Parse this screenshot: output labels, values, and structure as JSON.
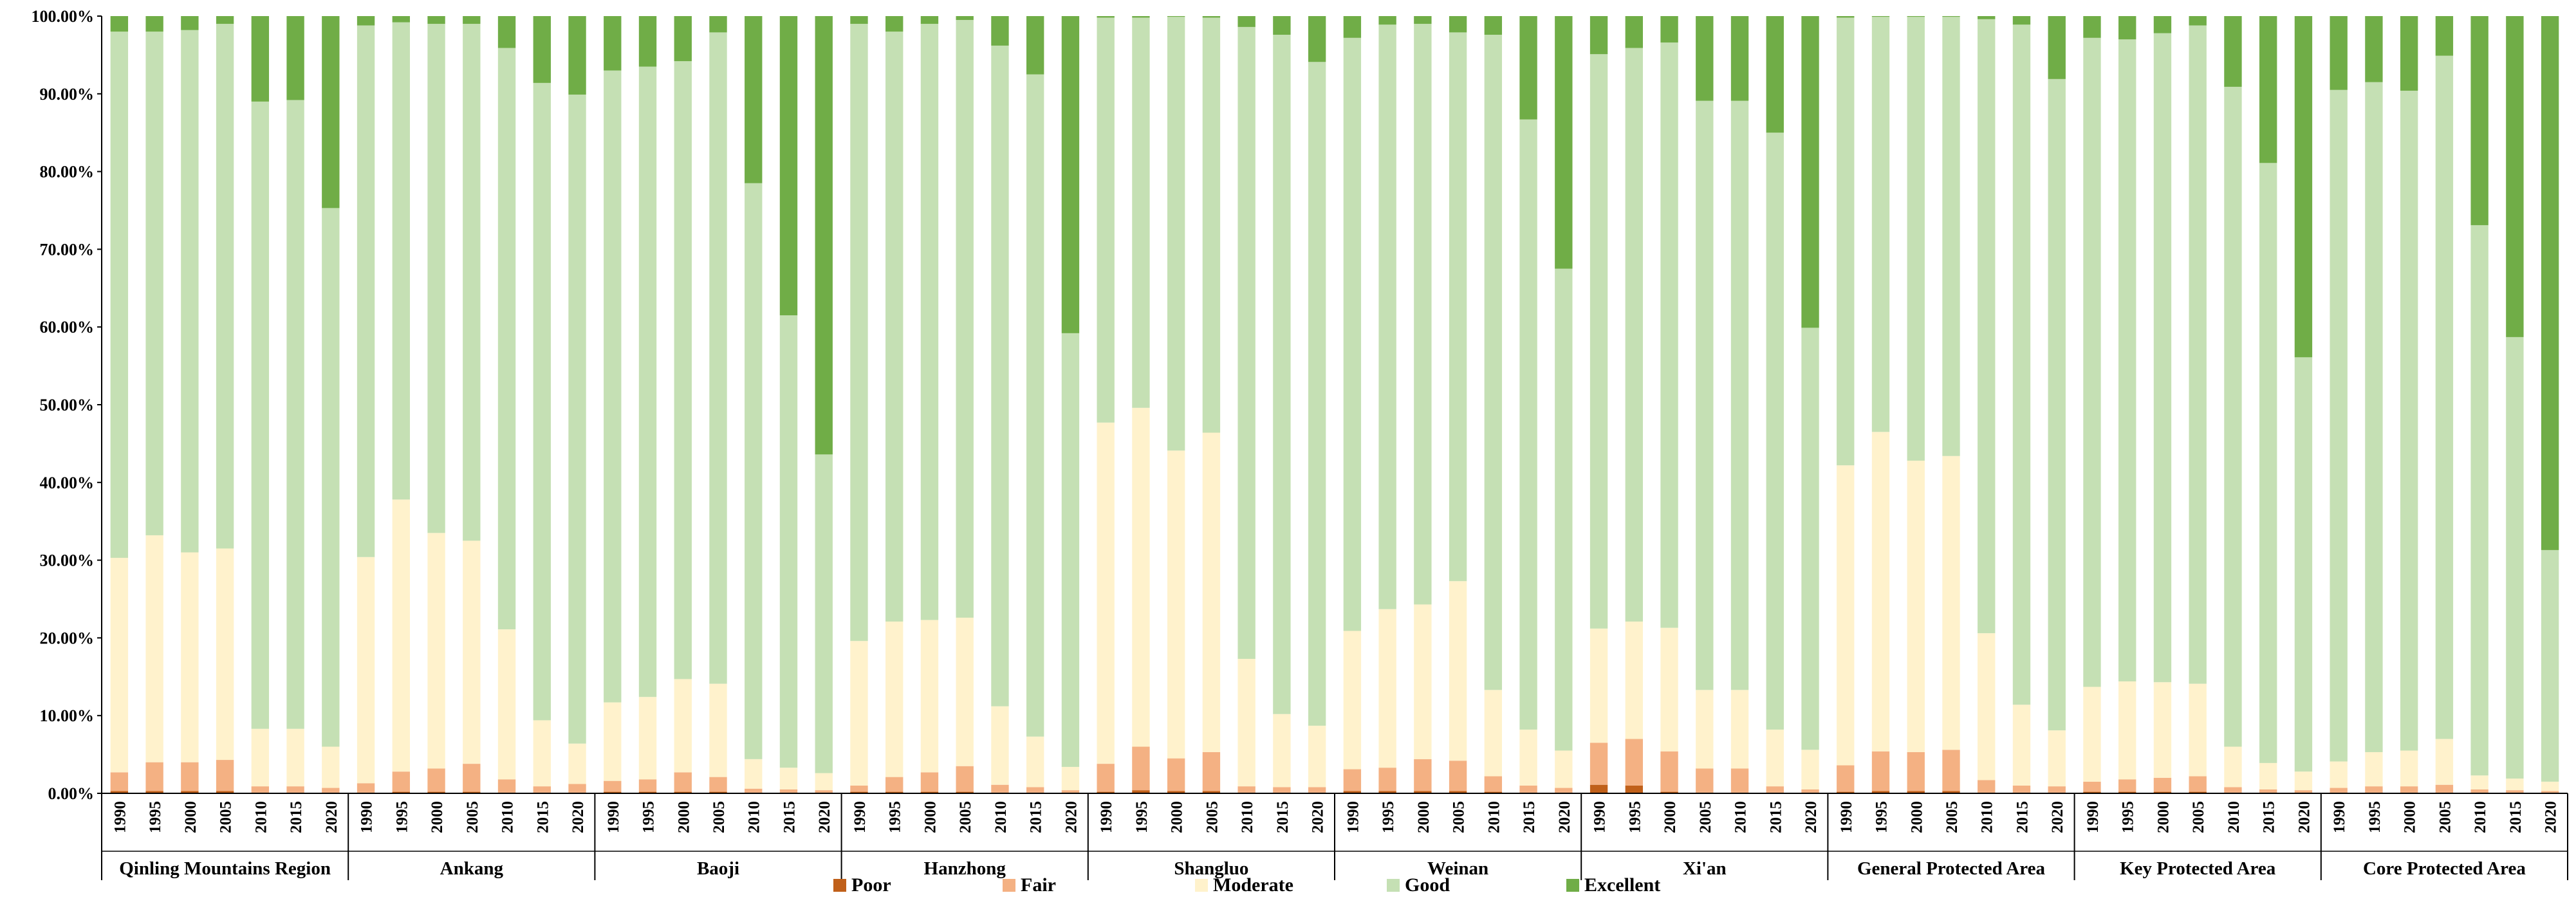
{
  "chart_data": {
    "type": "bar",
    "stacked": true,
    "percent": true,
    "ylim": [
      0,
      100
    ],
    "y_ticks": [
      0,
      10,
      20,
      30,
      40,
      50,
      60,
      70,
      80,
      90,
      100
    ],
    "y_tick_labels": [
      "0.00%",
      "10.00%",
      "20.00%",
      "30.00%",
      "40.00%",
      "50.00%",
      "60.00%",
      "70.00%",
      "80.00%",
      "90.00%",
      "100.00%"
    ],
    "years": [
      "1990",
      "1995",
      "2000",
      "2005",
      "2010",
      "2015",
      "2020"
    ],
    "legend_position": "bottom-center",
    "series": [
      {
        "name": "Poor",
        "color": "#c0601a"
      },
      {
        "name": "Fair",
        "color": "#f4b183"
      },
      {
        "name": "Moderate",
        "color": "#fff2cc"
      },
      {
        "name": "Good",
        "color": "#c5e0b4"
      },
      {
        "name": "Excellent",
        "color": "#70ad47"
      }
    ],
    "groups": [
      {
        "name": "Qinling Mountains Region",
        "data": [
          [
            0.3,
            2.4,
            27.6,
            67.7,
            2.0
          ],
          [
            0.3,
            3.7,
            29.2,
            64.8,
            2.0
          ],
          [
            0.3,
            3.7,
            27.0,
            67.2,
            1.8
          ],
          [
            0.3,
            4.0,
            27.2,
            67.5,
            1.0
          ],
          [
            0.1,
            0.8,
            7.4,
            80.7,
            11.0
          ],
          [
            0.1,
            0.8,
            7.4,
            80.9,
            10.8
          ],
          [
            0.1,
            0.6,
            5.3,
            69.3,
            24.7
          ]
        ]
      },
      {
        "name": "Ankang",
        "data": [
          [
            0.1,
            1.2,
            29.1,
            68.4,
            1.2
          ],
          [
            0.2,
            2.6,
            35.0,
            61.4,
            0.8
          ],
          [
            0.2,
            3.0,
            30.3,
            65.5,
            1.0
          ],
          [
            0.2,
            3.6,
            28.7,
            66.5,
            1.0
          ],
          [
            0.1,
            1.7,
            19.3,
            74.8,
            4.1
          ],
          [
            0.1,
            0.8,
            8.5,
            82.0,
            8.6
          ],
          [
            0.1,
            1.1,
            5.2,
            83.5,
            10.1
          ]
        ]
      },
      {
        "name": "Baoji",
        "data": [
          [
            0.2,
            1.4,
            10.1,
            81.3,
            7.0
          ],
          [
            0.2,
            1.6,
            10.6,
            81.1,
            6.5
          ],
          [
            0.2,
            2.5,
            12.0,
            79.5,
            5.8
          ],
          [
            0.2,
            1.9,
            12.0,
            83.8,
            2.1
          ],
          [
            0.1,
            0.5,
            3.8,
            74.1,
            21.5
          ],
          [
            0.1,
            0.4,
            2.8,
            58.2,
            38.5
          ],
          [
            0.1,
            0.3,
            2.2,
            41.0,
            56.4
          ]
        ]
      },
      {
        "name": "Hanzhong",
        "data": [
          [
            0.2,
            0.8,
            18.6,
            79.4,
            1.0
          ],
          [
            0.2,
            1.9,
            20.0,
            75.9,
            2.0
          ],
          [
            0.2,
            2.5,
            19.6,
            76.7,
            1.0
          ],
          [
            0.2,
            3.3,
            19.1,
            76.9,
            0.5
          ],
          [
            0.1,
            1.0,
            10.1,
            85.0,
            3.8
          ],
          [
            0.1,
            0.7,
            6.5,
            85.2,
            7.5
          ],
          [
            0.1,
            0.3,
            3.0,
            55.8,
            40.8
          ]
        ]
      },
      {
        "name": "Shangluo",
        "data": [
          [
            0.2,
            3.6,
            43.9,
            52.1,
            0.2
          ],
          [
            0.4,
            5.6,
            43.6,
            50.2,
            0.2
          ],
          [
            0.3,
            4.2,
            39.6,
            55.8,
            0.1
          ],
          [
            0.3,
            5.0,
            41.1,
            53.4,
            0.2
          ],
          [
            0.1,
            0.8,
            16.4,
            81.3,
            1.4
          ],
          [
            0.1,
            0.7,
            9.4,
            87.4,
            2.4
          ],
          [
            0.1,
            0.7,
            7.9,
            85.4,
            5.9
          ]
        ]
      },
      {
        "name": "Weinan",
        "data": [
          [
            0.3,
            2.8,
            17.8,
            76.3,
            2.8
          ],
          [
            0.3,
            3.0,
            20.4,
            75.2,
            1.1
          ],
          [
            0.3,
            4.1,
            19.9,
            74.7,
            1.0
          ],
          [
            0.3,
            3.9,
            23.1,
            70.6,
            2.1
          ],
          [
            0.2,
            2.0,
            11.1,
            84.3,
            2.4
          ],
          [
            0.1,
            0.9,
            7.2,
            78.5,
            13.3
          ],
          [
            0.1,
            0.6,
            4.8,
            62.0,
            32.5
          ]
        ]
      },
      {
        "name": "Xi'an",
        "data": [
          [
            1.1,
            5.4,
            14.7,
            73.9,
            4.9
          ],
          [
            1.0,
            6.0,
            15.1,
            73.8,
            4.1
          ],
          [
            0.2,
            5.2,
            15.9,
            75.3,
            3.4
          ],
          [
            0.1,
            3.1,
            10.1,
            75.8,
            10.9
          ],
          [
            0.1,
            3.1,
            10.1,
            75.8,
            10.9
          ],
          [
            0.1,
            0.8,
            7.3,
            76.8,
            15.0
          ],
          [
            0.1,
            0.4,
            5.1,
            54.3,
            40.1
          ]
        ]
      },
      {
        "name": "General Protected Area",
        "data": [
          [
            0.2,
            3.4,
            38.6,
            57.6,
            0.2
          ],
          [
            0.3,
            5.1,
            41.1,
            53.4,
            0.1
          ],
          [
            0.3,
            5.0,
            37.5,
            57.1,
            0.1
          ],
          [
            0.3,
            5.3,
            37.8,
            56.5,
            0.1
          ],
          [
            0.1,
            1.6,
            18.9,
            79.0,
            0.4
          ],
          [
            0.1,
            0.9,
            10.4,
            87.5,
            1.1
          ],
          [
            0.1,
            0.8,
            7.2,
            83.8,
            8.1
          ]
        ]
      },
      {
        "name": "Key Protected Area",
        "data": [
          [
            0.2,
            1.3,
            12.2,
            83.5,
            2.8
          ],
          [
            0.2,
            1.6,
            12.6,
            82.6,
            3.0
          ],
          [
            0.2,
            1.8,
            12.3,
            83.5,
            2.2
          ],
          [
            0.2,
            2.0,
            11.9,
            84.7,
            1.2
          ],
          [
            0.1,
            0.7,
            5.2,
            84.9,
            9.1
          ],
          [
            0.1,
            0.4,
            3.4,
            77.2,
            18.9
          ],
          [
            0.1,
            0.3,
            2.4,
            53.3,
            43.9
          ]
        ]
      },
      {
        "name": "Core Protected Area",
        "data": [
          [
            0.1,
            0.6,
            3.4,
            86.4,
            9.5
          ],
          [
            0.1,
            0.8,
            4.4,
            86.2,
            8.5
          ],
          [
            0.1,
            0.8,
            4.6,
            84.9,
            9.6
          ],
          [
            0.1,
            1.0,
            5.9,
            87.9,
            5.1
          ],
          [
            0.1,
            0.4,
            1.8,
            70.8,
            26.9
          ],
          [
            0.1,
            0.3,
            1.5,
            56.8,
            41.3
          ],
          [
            0.1,
            0.2,
            1.2,
            29.8,
            68.7
          ]
        ]
      }
    ]
  }
}
